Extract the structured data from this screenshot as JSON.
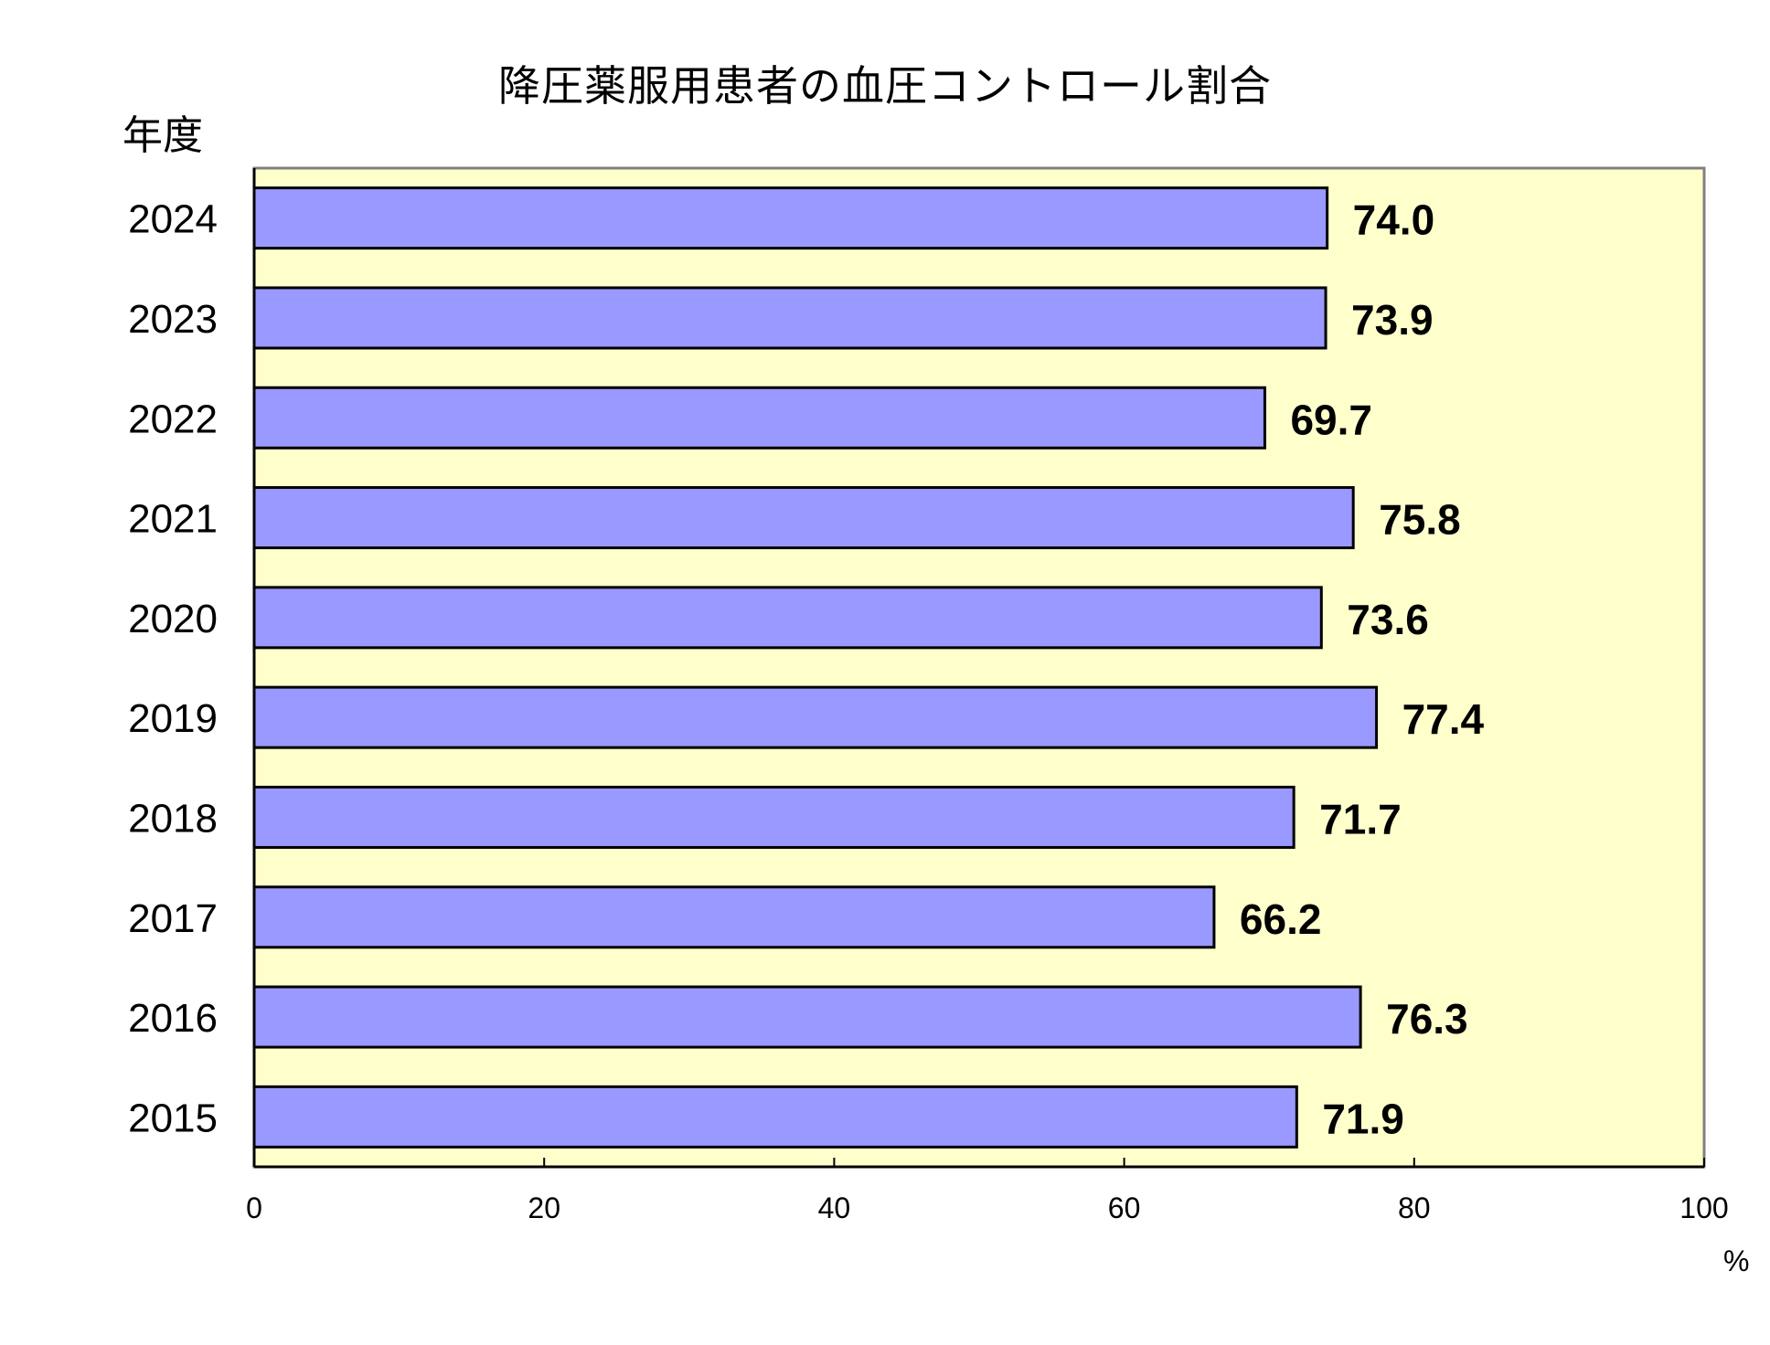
{
  "chart_data": {
    "type": "bar",
    "orientation": "horizontal",
    "title": "降圧薬服用患者の血圧コントロール割合",
    "ylabel": "年度",
    "xlabel": "%",
    "categories": [
      "2024",
      "2023",
      "2022",
      "2021",
      "2020",
      "2019",
      "2018",
      "2017",
      "2016",
      "2015"
    ],
    "values": [
      74.0,
      73.9,
      69.7,
      75.8,
      73.6,
      77.4,
      71.7,
      66.2,
      76.3,
      71.9
    ],
    "value_labels": [
      "74.0",
      "73.9",
      "69.7",
      "75.8",
      "73.6",
      "77.4",
      "71.7",
      "66.2",
      "76.3",
      "71.9"
    ],
    "xlim": [
      0,
      100
    ],
    "xticks": [
      "0",
      "20",
      "40",
      "60",
      "80",
      "100"
    ],
    "grid": false,
    "colors": {
      "bar_fill": "#9999FF",
      "bar_stroke": "#000000",
      "plot_background": "#FFFFCC",
      "plot_border": "#808080"
    }
  }
}
